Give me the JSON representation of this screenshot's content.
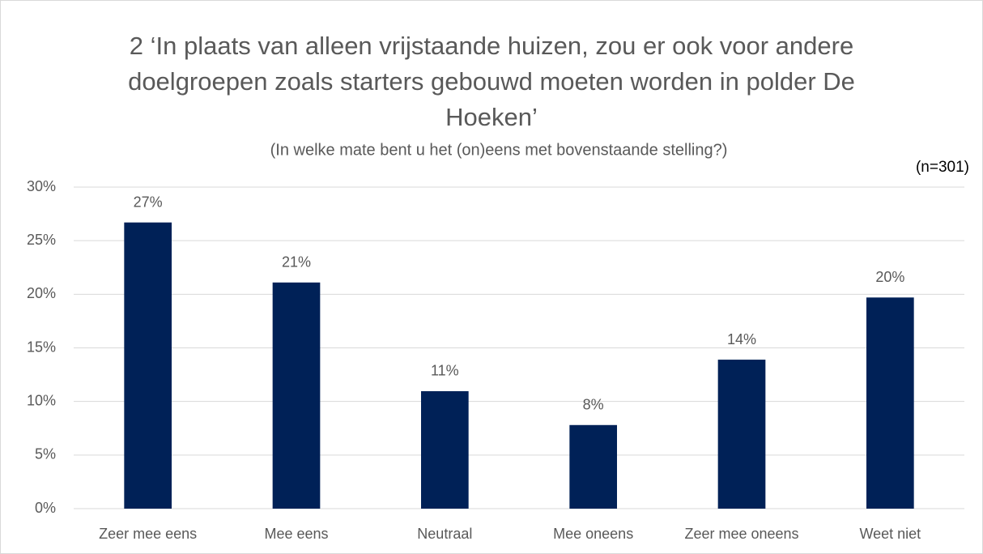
{
  "chart_data": {
    "type": "bar",
    "title": "2 ‘In plaats van alleen vrijstaande huizen, zou er ook voor andere doelgroepen zoals starters gebouwd moeten worden in polder De Hoeken’",
    "subtitle": "(In welke mate bent u het (on)eens met bovenstaande stelling?)",
    "annotation": "(n=301)",
    "categories": [
      "Zeer mee eens",
      "Mee eens",
      "Neutraal",
      "Mee oneens",
      "Zeer mee oneens",
      "Weet niet"
    ],
    "values": [
      26.7,
      21.1,
      10.96,
      7.8,
      13.9,
      19.7
    ],
    "value_labels": [
      "27%",
      "21%",
      "11%",
      "8%",
      "14%",
      "20%"
    ],
    "color": "#002157",
    "ylim": [
      0,
      30
    ],
    "yticks": [
      {
        "value": 0,
        "label": "0%"
      },
      {
        "value": 5,
        "label": "5%"
      },
      {
        "value": 10,
        "label": "10%"
      },
      {
        "value": 15,
        "label": "15%"
      },
      {
        "value": 20,
        "label": "20%"
      },
      {
        "value": 25,
        "label": "25%"
      },
      {
        "value": 30,
        "label": "30%"
      }
    ],
    "grid": true
  }
}
